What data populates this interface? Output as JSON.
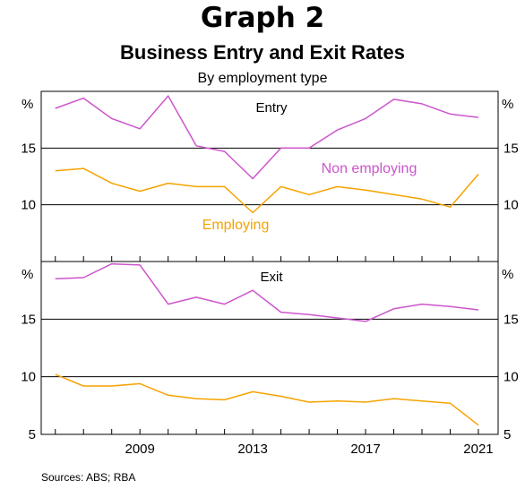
{
  "title": "Graph 2",
  "subtitle": "Business Entry and Exit Rates",
  "subsubtitle": "By employment type",
  "source": "Sources: ABS; RBA",
  "chart_data": [
    {
      "type": "line",
      "panel_label": "Entry",
      "unit_left": "%",
      "unit_right": "%",
      "ylim": [
        5,
        20
      ],
      "yticks": [
        10,
        15
      ],
      "x": [
        2006,
        2007,
        2008,
        2009,
        2010,
        2011,
        2012,
        2013,
        2014,
        2015,
        2016,
        2017,
        2018,
        2019,
        2020,
        2021
      ],
      "xticks": [
        2009,
        2013,
        2017,
        2021
      ],
      "series": [
        {
          "name": "Non employing",
          "color": "#CC55CC",
          "values": [
            18.5,
            19.4,
            17.6,
            16.7,
            19.6,
            15.2,
            14.7,
            12.3,
            15.0,
            15.0,
            16.6,
            17.6,
            19.3,
            18.9,
            18.0,
            17.7
          ]
        },
        {
          "name": "Employing",
          "color": "#F5A300",
          "values": [
            13.0,
            13.2,
            11.9,
            11.2,
            11.9,
            11.6,
            11.6,
            9.3,
            11.6,
            10.9,
            11.6,
            11.3,
            10.9,
            10.5,
            9.8,
            12.7
          ]
        }
      ]
    },
    {
      "type": "line",
      "panel_label": "Exit",
      "unit_left": "%",
      "unit_right": "%",
      "ylim": [
        5,
        20
      ],
      "yticks": [
        5,
        10,
        15
      ],
      "x": [
        2006,
        2007,
        2008,
        2009,
        2010,
        2011,
        2012,
        2013,
        2014,
        2015,
        2016,
        2017,
        2018,
        2019,
        2020,
        2021
      ],
      "xticks": [
        2009,
        2013,
        2017,
        2021
      ],
      "series": [
        {
          "name": "Non employing",
          "color": "#CC55CC",
          "values": [
            18.5,
            18.6,
            19.8,
            19.7,
            16.3,
            16.9,
            16.3,
            17.5,
            15.6,
            15.4,
            15.1,
            14.8,
            15.9,
            16.3,
            16.1,
            15.8
          ]
        },
        {
          "name": "Employing",
          "color": "#F5A300",
          "values": [
            10.2,
            9.2,
            9.2,
            9.4,
            8.4,
            8.1,
            8.0,
            8.7,
            8.3,
            7.8,
            7.9,
            7.8,
            8.1,
            7.9,
            7.7,
            5.8
          ]
        }
      ]
    }
  ]
}
